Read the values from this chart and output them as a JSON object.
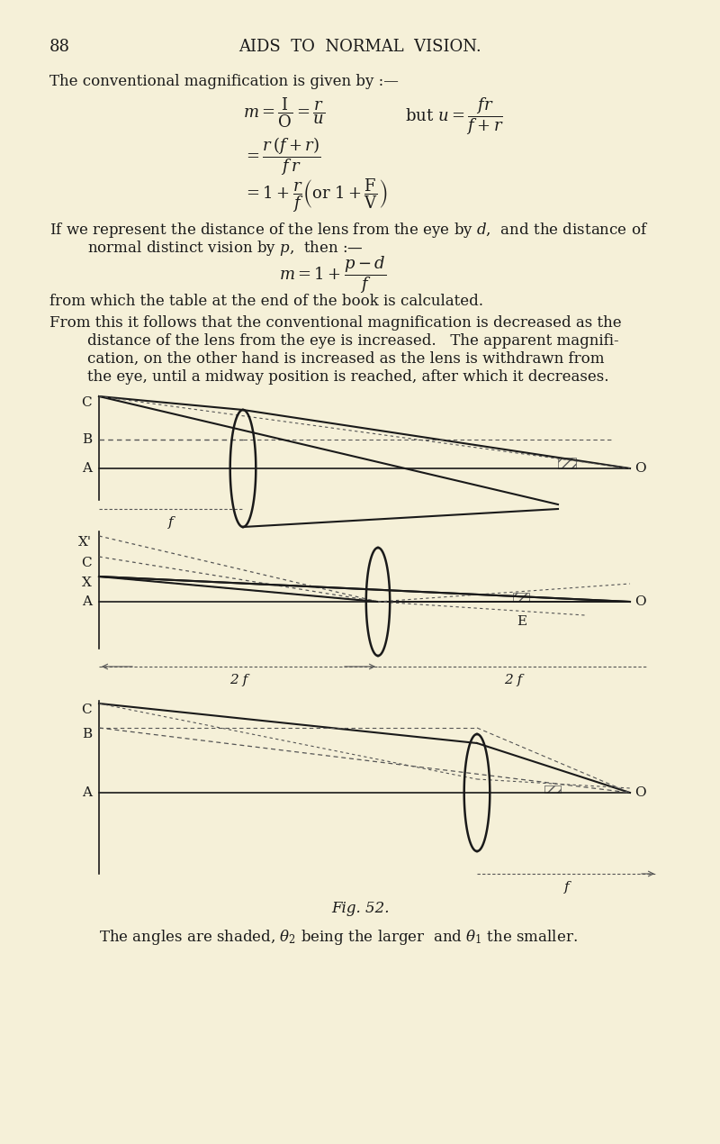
{
  "bg_color": "#f5f0d8",
  "text_color": "#1a1a1a",
  "page_number": "88",
  "header": "AIDS  TO  NORMAL  VISION.",
  "line1": "The conventional magnification is given by :—",
  "para1": "If we represent the distance of the lens from the eye by $d$, and the distance of\n        normal distinct vision by $p$, then :—",
  "formula_m1": "$m = \\dfrac{\\mathrm{I}}{\\mathrm{O}} = \\dfrac{r}{u}$",
  "formula_but": "but $u = \\dfrac{fr}{f + r}$",
  "formula_m2": "$= \\dfrac{r(f + r)}{fr}$",
  "formula_m3": "$= 1 + \\dfrac{r}{f}$ $\\left($ or $1 + \\dfrac{\\mathrm{F}}{\\mathrm{V}}$ $\\right)$",
  "formula_md": "$m = 1 + \\dfrac{p - d}{f}$",
  "line_table": "from which the table at the end of the book is calculated.",
  "para2": "From this it follows that the conventional magnification is decreased as the\n        distance of the lens from the eye is increased.   The apparent magnifi-\n        cation, on the other hand is increased as the lens is withdrawn from\n        the eye, until a midway position is reached, after which it decreases.",
  "fig_caption": "Fig. 52.",
  "caption_text": "The angles are shaded, $\\theta_2$ being the larger  and $\\theta_1$ the smaller.",
  "line_color": "#1a1a1a",
  "dashed_color": "#555555",
  "lens_color": "#1a1a1a",
  "shade_color": "#aaaaaa"
}
